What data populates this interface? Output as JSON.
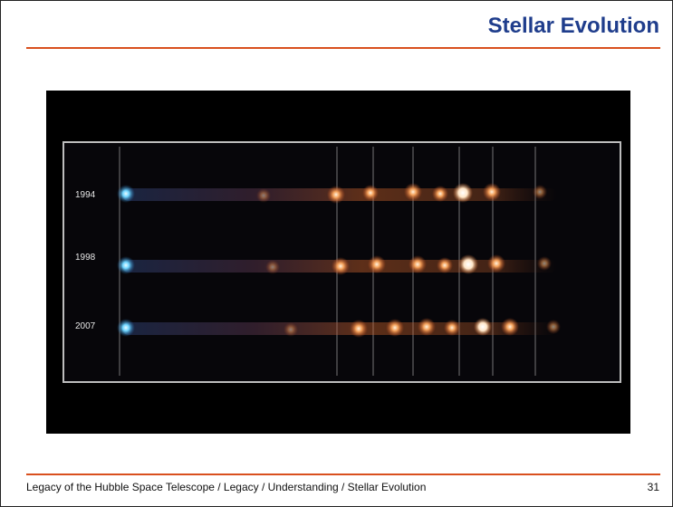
{
  "slide": {
    "title": "Stellar Evolution",
    "footer": "Legacy of the Hubble Space Telescope / Legacy / Understanding / Stellar Evolution",
    "page_number": "31"
  },
  "figure": {
    "years": [
      "1994",
      "1998",
      "2007"
    ]
  },
  "colors": {
    "title": "#1f3d8c",
    "accent_rule": "#d9501e",
    "image_background": "#000000"
  }
}
